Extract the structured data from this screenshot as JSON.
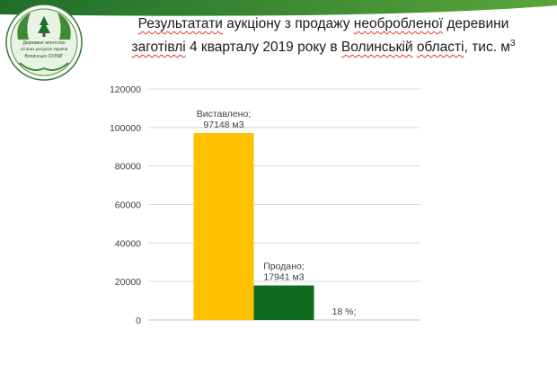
{
  "header": {
    "title_parts": [
      {
        "t": "Результатати",
        "s": true
      },
      {
        "t": " аукціону з продажу ",
        "s": false
      },
      {
        "t": "необробленої",
        "s": true
      },
      {
        "t": " деревини",
        "s": false
      }
    ],
    "title_line2_parts": [
      {
        "t": "заготівлі",
        "s": true
      },
      {
        "t": " 4 кварталу 2019 року в ",
        "s": false
      },
      {
        "t": "Волинській",
        "s": true
      },
      {
        "t": " ",
        "s": false
      },
      {
        "t": "області",
        "s": true
      },
      {
        "t": ", тис. м",
        "s": false
      }
    ],
    "title_superscript": "3"
  },
  "logo": {
    "text_lines": [
      "Державне агентство",
      "лісових ресурсів України",
      "Волинське ОУЛМГ"
    ]
  },
  "colors": {
    "banner_dark": "#1f6e2a",
    "banner_light": "#5aa53a",
    "bar_offered": "#ffc000",
    "bar_sold": "#0f6b1e",
    "gridline": "#d9d9d9",
    "text": "#404040"
  },
  "chart_data": {
    "type": "bar",
    "title": "",
    "xlabel": "",
    "ylabel": "",
    "ylim": [
      0,
      120000
    ],
    "yticks": [
      0,
      20000,
      40000,
      60000,
      80000,
      100000,
      120000
    ],
    "grid": true,
    "legend": "none",
    "bars": [
      {
        "label_lines": [
          "Виставлено;",
          "97148 м3"
        ],
        "value": 97148,
        "color": "#ffc000"
      },
      {
        "label_lines": [
          "Продано;",
          "17941 м3"
        ],
        "value": 17941,
        "color": "#0f6b1e"
      },
      {
        "label_lines": [
          "18 %;"
        ],
        "value": 0,
        "color": "#ffffff"
      }
    ]
  }
}
